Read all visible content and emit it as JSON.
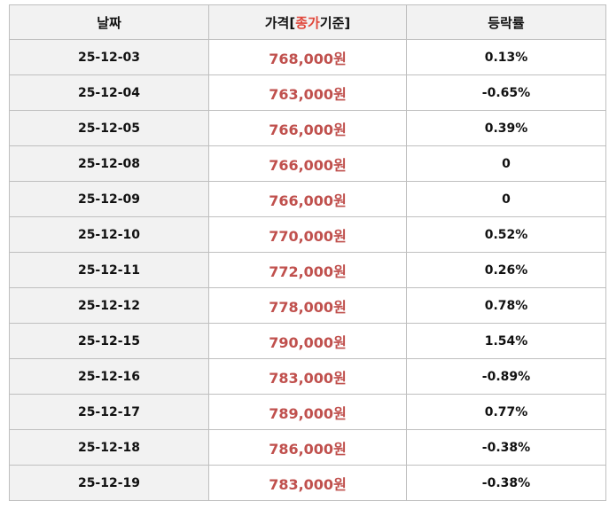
{
  "table": {
    "header": [
      "날짜",
      [
        "가격[",
        "종가",
        "기준]"
      ],
      "등락률"
    ],
    "rows": [
      [
        "25-12-03",
        "768,000원",
        "0.13%"
      ],
      [
        "25-12-04",
        "763,000원",
        "-0.65%"
      ],
      [
        "25-12-05",
        "766,000원",
        "0.39%"
      ],
      [
        "25-12-08",
        "766,000원",
        "0"
      ],
      [
        "25-12-09",
        "766,000원",
        "0"
      ],
      [
        "25-12-10",
        "770,000원",
        "0.52%"
      ],
      [
        "25-12-11",
        "772,000원",
        "0.26%"
      ],
      [
        "25-12-12",
        "778,000원",
        "0.78%"
      ],
      [
        "25-12-15",
        "790,000원",
        "1.54%"
      ],
      [
        "25-12-16",
        "783,000원",
        "-0.89%"
      ],
      [
        "25-12-17",
        "789,000원",
        "0.77%"
      ],
      [
        "25-12-18",
        "786,000원",
        "-0.38%"
      ],
      [
        "25-12-19",
        "783,000원",
        "-0.38%"
      ]
    ]
  }
}
